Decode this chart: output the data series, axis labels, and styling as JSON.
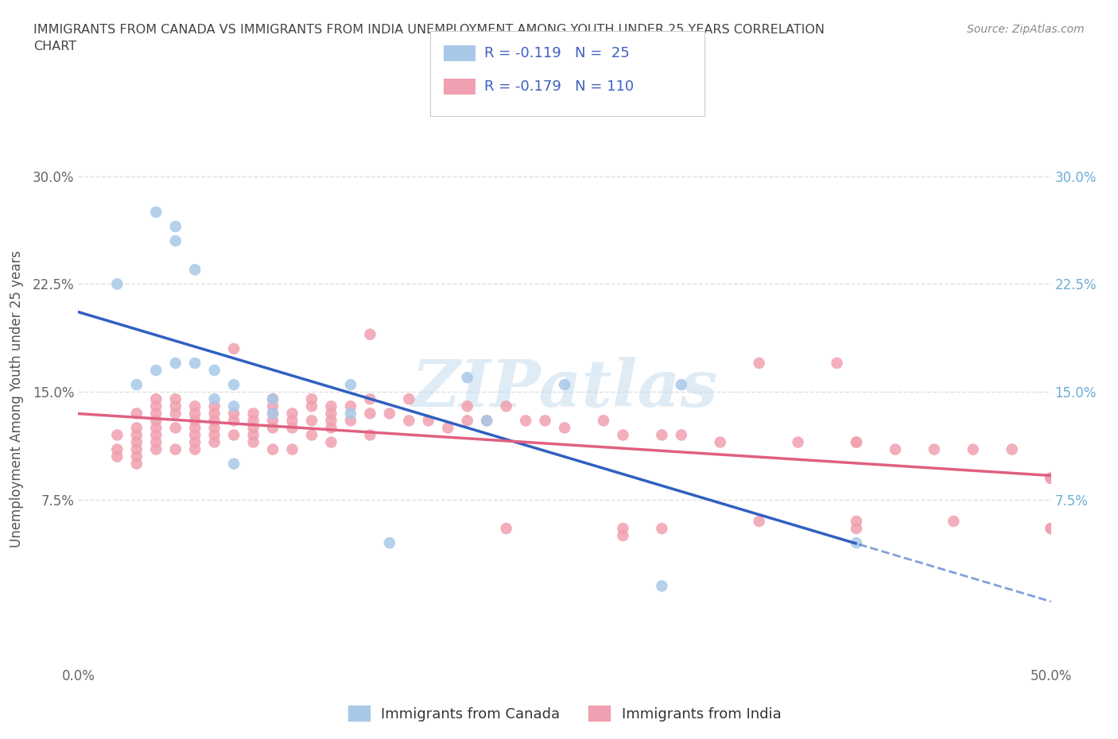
{
  "title_line1": "IMMIGRANTS FROM CANADA VS IMMIGRANTS FROM INDIA UNEMPLOYMENT AMONG YOUTH UNDER 25 YEARS CORRELATION",
  "title_line2": "CHART",
  "source_text": "Source: ZipAtlas.com",
  "ylabel": "Unemployment Among Youth under 25 years",
  "xlim": [
    0.0,
    0.5
  ],
  "ylim": [
    -0.04,
    0.33
  ],
  "plot_ylim": [
    -0.04,
    0.33
  ],
  "xtick_positions": [
    0.0,
    0.1,
    0.2,
    0.3,
    0.4,
    0.5
  ],
  "xtick_labels": [
    "0.0%",
    "",
    "",
    "",
    "",
    "50.0%"
  ],
  "ytick_positions": [
    0.075,
    0.15,
    0.225,
    0.3
  ],
  "ytick_labels": [
    "7.5%",
    "15.0%",
    "22.5%",
    "30.0%"
  ],
  "right_ytick_labels": [
    "7.5%",
    "15.0%",
    "22.5%",
    "30.0%"
  ],
  "right_ytick_color": "#6baed6",
  "canada_color": "#a8c8e8",
  "india_color": "#f0a0b0",
  "canada_line_color": "#3060c0",
  "india_line_color": "#e06080",
  "legend_r_canada": "R = -0.119",
  "legend_n_canada": "N =  25",
  "legend_r_india": "R = -0.179",
  "legend_n_india": "N = 110",
  "legend_text_color": "#4060c0",
  "watermark_text": "ZIPatlas",
  "background_color": "#ffffff",
  "grid_color": "#d8d8d8",
  "canada_x": [
    0.04,
    0.05,
    0.05,
    0.06,
    0.02,
    0.03,
    0.04,
    0.05,
    0.06,
    0.07,
    0.08,
    0.07,
    0.08,
    0.08,
    0.1,
    0.1,
    0.14,
    0.14,
    0.2,
    0.25,
    0.21,
    0.31,
    0.4,
    0.16,
    0.3
  ],
  "canada_y": [
    0.275,
    0.265,
    0.255,
    0.235,
    0.225,
    0.155,
    0.165,
    0.17,
    0.17,
    0.165,
    0.155,
    0.145,
    0.14,
    0.1,
    0.145,
    0.135,
    0.155,
    0.135,
    0.16,
    0.155,
    0.13,
    0.155,
    0.045,
    0.045,
    0.015
  ],
  "india_x": [
    0.02,
    0.02,
    0.02,
    0.03,
    0.03,
    0.03,
    0.03,
    0.03,
    0.03,
    0.03,
    0.04,
    0.04,
    0.04,
    0.04,
    0.04,
    0.04,
    0.04,
    0.04,
    0.05,
    0.05,
    0.05,
    0.05,
    0.05,
    0.06,
    0.06,
    0.06,
    0.06,
    0.06,
    0.06,
    0.06,
    0.07,
    0.07,
    0.07,
    0.07,
    0.07,
    0.07,
    0.08,
    0.08,
    0.08,
    0.08,
    0.09,
    0.09,
    0.09,
    0.09,
    0.09,
    0.1,
    0.1,
    0.1,
    0.1,
    0.1,
    0.1,
    0.11,
    0.11,
    0.11,
    0.11,
    0.12,
    0.12,
    0.12,
    0.12,
    0.13,
    0.13,
    0.13,
    0.13,
    0.13,
    0.14,
    0.14,
    0.15,
    0.15,
    0.15,
    0.15,
    0.16,
    0.17,
    0.17,
    0.18,
    0.19,
    0.2,
    0.2,
    0.21,
    0.22,
    0.23,
    0.24,
    0.25,
    0.27,
    0.28,
    0.3,
    0.31,
    0.33,
    0.35,
    0.37,
    0.39,
    0.4,
    0.4,
    0.42,
    0.44,
    0.46,
    0.48,
    0.5,
    0.5,
    0.5,
    0.5,
    0.22,
    0.28,
    0.35,
    0.4,
    0.45,
    0.5,
    0.3,
    0.5,
    0.4,
    0.28
  ],
  "india_y": [
    0.12,
    0.11,
    0.105,
    0.135,
    0.125,
    0.12,
    0.115,
    0.11,
    0.105,
    0.1,
    0.145,
    0.14,
    0.135,
    0.13,
    0.125,
    0.12,
    0.115,
    0.11,
    0.145,
    0.14,
    0.135,
    0.125,
    0.11,
    0.14,
    0.135,
    0.13,
    0.125,
    0.12,
    0.115,
    0.11,
    0.14,
    0.135,
    0.13,
    0.125,
    0.12,
    0.115,
    0.18,
    0.135,
    0.13,
    0.12,
    0.135,
    0.13,
    0.125,
    0.12,
    0.115,
    0.145,
    0.14,
    0.135,
    0.13,
    0.125,
    0.11,
    0.135,
    0.13,
    0.125,
    0.11,
    0.145,
    0.14,
    0.13,
    0.12,
    0.14,
    0.135,
    0.13,
    0.125,
    0.115,
    0.14,
    0.13,
    0.19,
    0.145,
    0.135,
    0.12,
    0.135,
    0.145,
    0.13,
    0.13,
    0.125,
    0.14,
    0.13,
    0.13,
    0.14,
    0.13,
    0.13,
    0.125,
    0.13,
    0.12,
    0.12,
    0.12,
    0.115,
    0.17,
    0.115,
    0.17,
    0.115,
    0.115,
    0.11,
    0.11,
    0.11,
    0.11,
    0.09,
    0.09,
    0.09,
    0.09,
    0.055,
    0.05,
    0.06,
    0.06,
    0.06,
    0.055,
    0.055,
    0.055,
    0.055,
    0.055
  ]
}
